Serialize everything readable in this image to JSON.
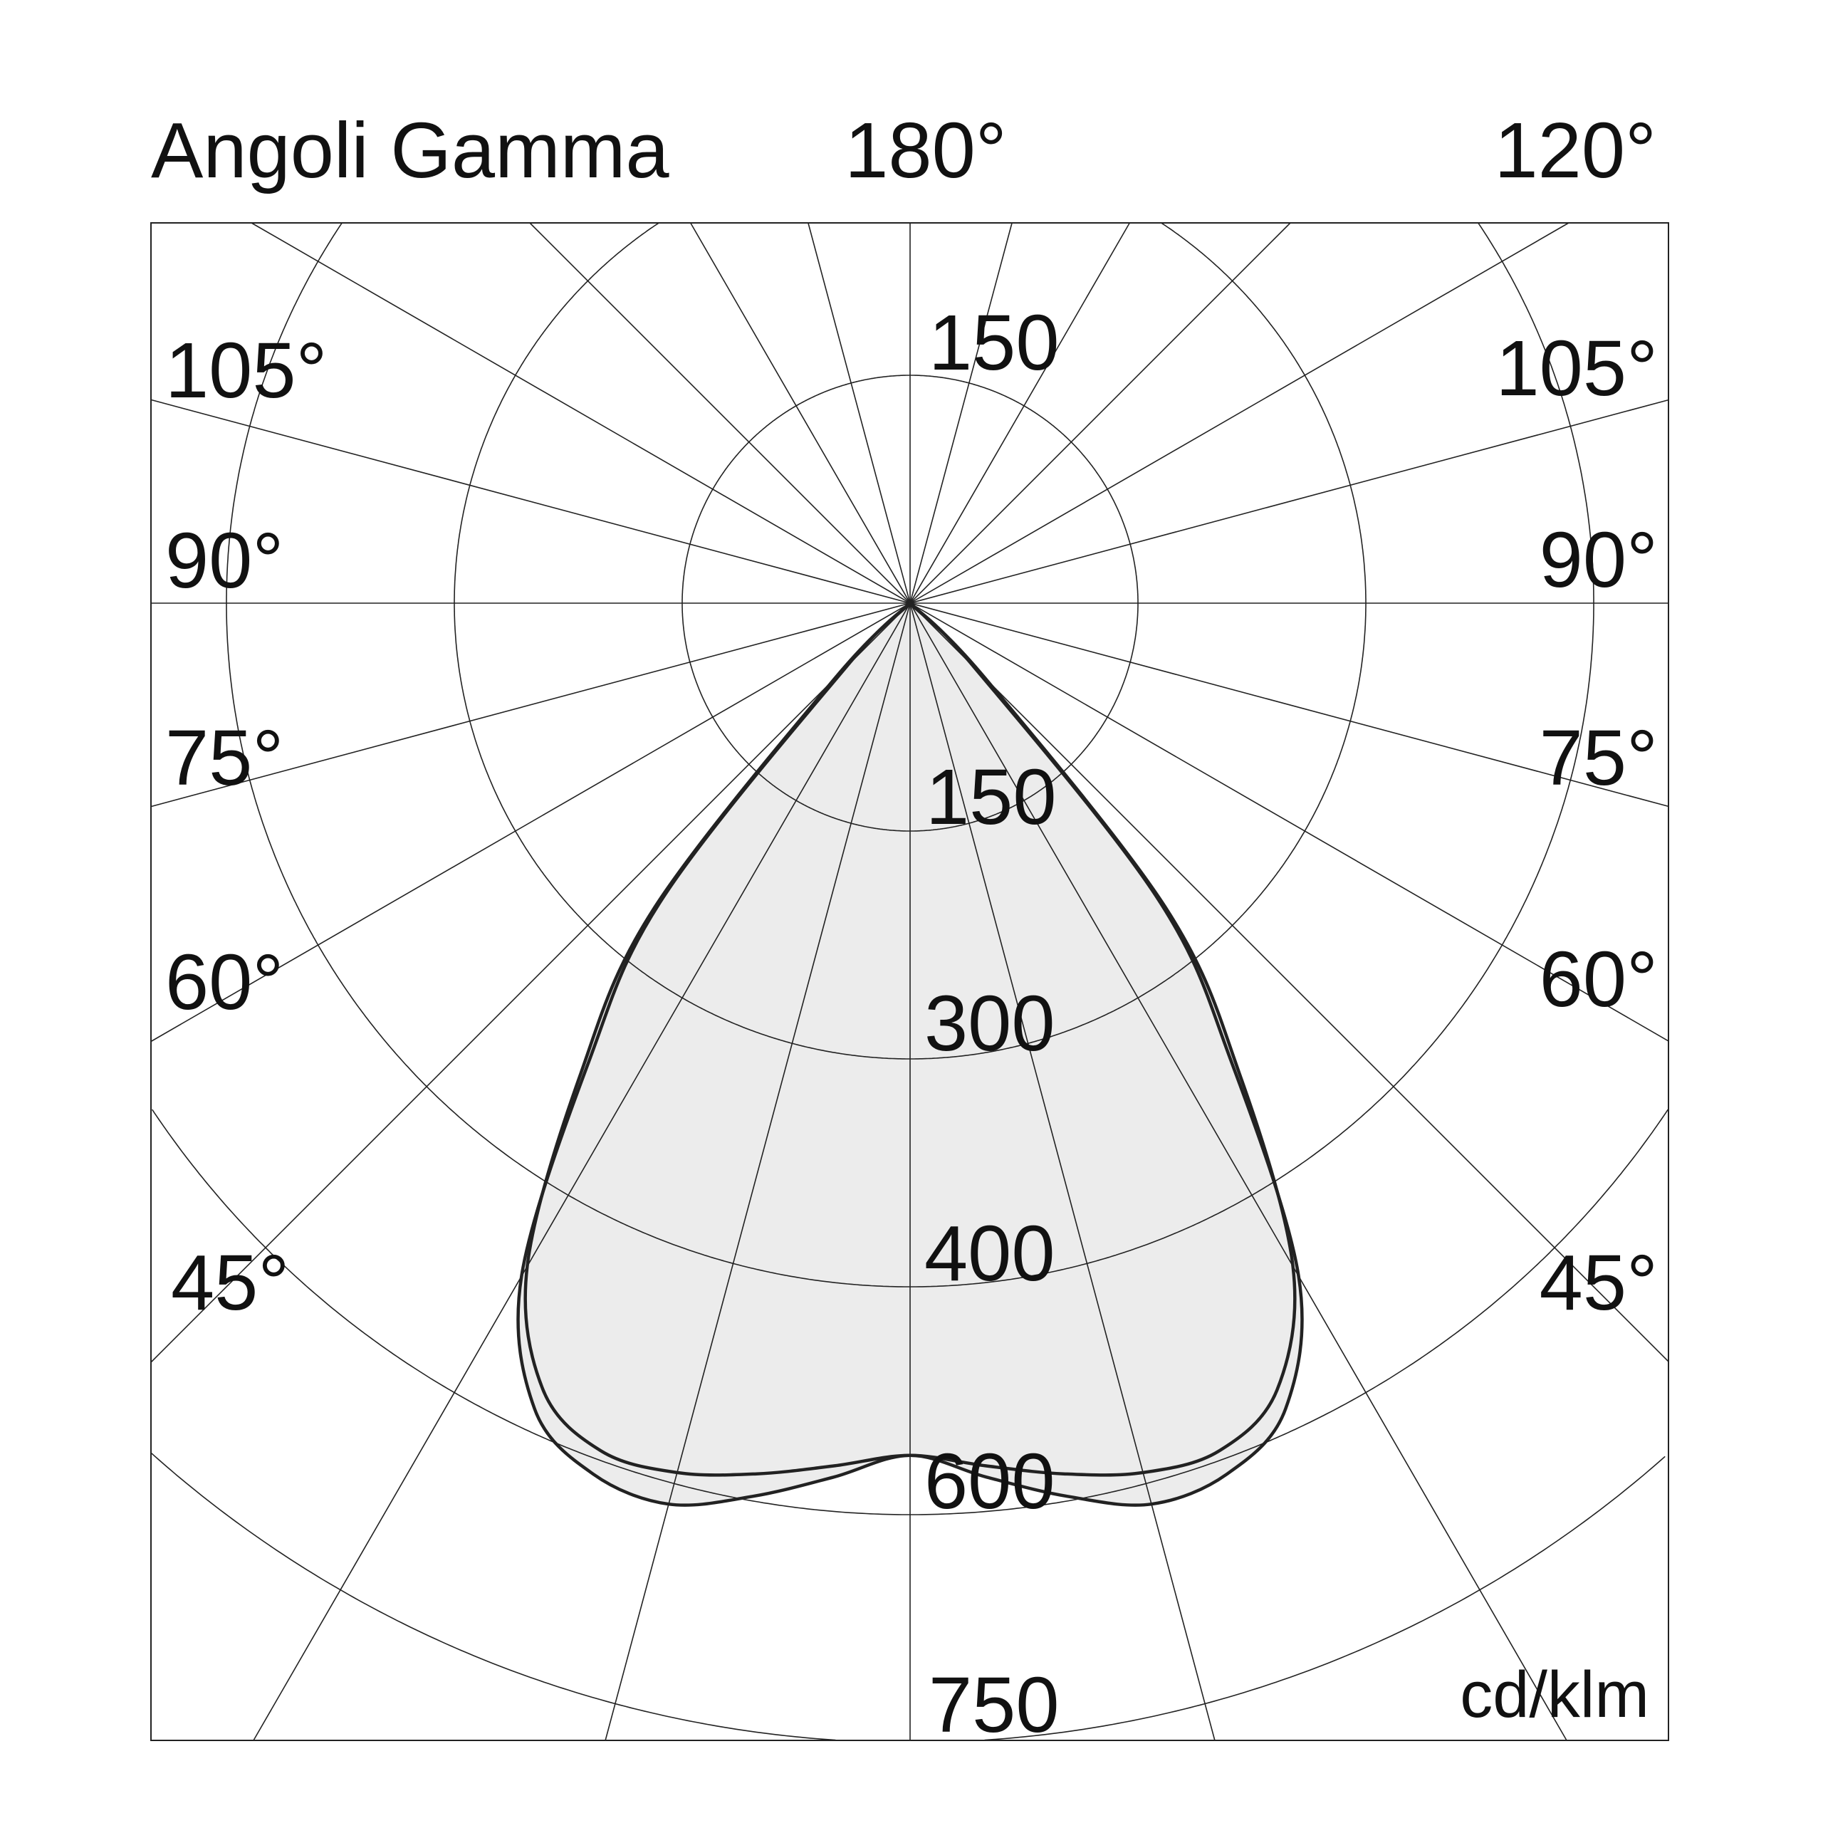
{
  "chart_data": {
    "type": "polar",
    "title": "Angoli Gamma",
    "unit": "cd/klm",
    "angle_labels": {
      "top_center": "180°",
      "top_right": "120°",
      "left": [
        "105°",
        "90°",
        "75°",
        "60°",
        "45°"
      ],
      "right": [
        "105°",
        "90°",
        "75°",
        "60°",
        "45°"
      ]
    },
    "radial_tick_labels": {
      "upper": "150",
      "lower": [
        "150",
        "300",
        "400",
        "600",
        "750"
      ]
    },
    "rings": [
      150,
      300,
      400,
      600,
      750
    ],
    "radial_line_step_deg": 15,
    "grid": true,
    "fill_color": "#ececec",
    "line_color": "#222222",
    "series": [
      {
        "gamma_deg": [
          0,
          5,
          10,
          15,
          20,
          25,
          30,
          35,
          40,
          45,
          50
        ],
        "values": [
          548,
          570,
          596,
          614,
          610,
          580,
          482,
          346,
          253,
          60,
          0
        ],
        "symmetric": true
      },
      {
        "gamma_deg": [
          0,
          5,
          10,
          15,
          20,
          25,
          30,
          35,
          40,
          45,
          50
        ],
        "values": [
          548,
          560,
          576,
          590,
          592,
          562,
          472,
          352,
          262,
          70,
          0
        ],
        "symmetric": true
      }
    ]
  }
}
